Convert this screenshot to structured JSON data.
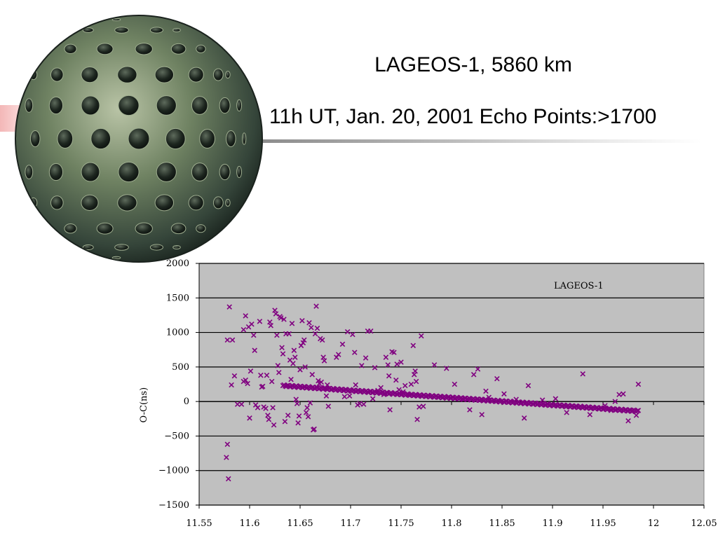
{
  "slide": {
    "title": "LAGEOS-1, 5860 km",
    "subtitle": "11h UT, Jan. 20, 2001 Echo Points:>1700",
    "accent_color": "#f3b7b7",
    "image_icon": "lageos-satellite-sphere"
  },
  "chart_data": {
    "type": "scatter",
    "title": "",
    "xlabel": "",
    "ylabel": "O-C(ns)",
    "xlim": [
      11.55,
      12.05
    ],
    "ylim": [
      -1500,
      2000
    ],
    "x_ticks": [
      "11.55",
      "11.6",
      "11.65",
      "11.7",
      "11.75",
      "11.8",
      "11.85",
      "11.9",
      "11.95",
      "12",
      "12.05"
    ],
    "y_ticks": [
      "2000",
      "1500",
      "1000",
      "500",
      "0",
      "-500",
      "-1000",
      "-1500"
    ],
    "grid": true,
    "legend_position": "top-right",
    "plot_background": "#c0c0c0",
    "marker_color": "#800080",
    "series": [
      {
        "name": "LAGEOS-1",
        "trend": {
          "x_start": 11.633,
          "y_start": 230,
          "x_end": 11.985,
          "y_end": -140,
          "count": 320
        },
        "points": [
          [
            11.58,
            1370
          ],
          [
            11.578,
            890
          ],
          [
            11.583,
            890
          ],
          [
            11.578,
            -620
          ],
          [
            11.577,
            -810
          ],
          [
            11.579,
            -1120
          ],
          [
            11.582,
            240
          ],
          [
            11.585,
            370
          ],
          [
            11.588,
            -40
          ],
          [
            11.592,
            -40
          ],
          [
            11.594,
            290
          ],
          [
            11.596,
            310
          ],
          [
            11.598,
            260
          ],
          [
            11.594,
            1040
          ],
          [
            11.596,
            1240
          ],
          [
            11.599,
            1080
          ],
          [
            11.6,
            -240
          ],
          [
            11.601,
            440
          ],
          [
            11.602,
            1120
          ],
          [
            11.604,
            960
          ],
          [
            11.605,
            740
          ],
          [
            11.606,
            -50
          ],
          [
            11.608,
            -90
          ],
          [
            11.61,
            1160
          ],
          [
            11.611,
            380
          ],
          [
            11.612,
            210
          ],
          [
            11.613,
            220
          ],
          [
            11.614,
            -80
          ],
          [
            11.616,
            -100
          ],
          [
            11.617,
            380
          ],
          [
            11.618,
            -200
          ],
          [
            11.619,
            -260
          ],
          [
            11.62,
            1150
          ],
          [
            11.621,
            1100
          ],
          [
            11.622,
            290
          ],
          [
            11.623,
            -90
          ],
          [
            11.624,
            -340
          ],
          [
            11.625,
            1320
          ],
          [
            11.626,
            1270
          ],
          [
            11.627,
            960
          ],
          [
            11.628,
            520
          ],
          [
            11.629,
            420
          ],
          [
            11.63,
            1230
          ],
          [
            11.631,
            1210
          ],
          [
            11.632,
            780
          ],
          [
            11.633,
            690
          ],
          [
            11.634,
            1190
          ],
          [
            11.635,
            -290
          ],
          [
            11.636,
            980
          ],
          [
            11.637,
            230
          ],
          [
            11.638,
            -200
          ],
          [
            11.639,
            980
          ],
          [
            11.64,
            600
          ],
          [
            11.641,
            320
          ],
          [
            11.642,
            1130
          ],
          [
            11.643,
            550
          ],
          [
            11.644,
            740
          ],
          [
            11.645,
            640
          ],
          [
            11.646,
            30
          ],
          [
            11.647,
            -30
          ],
          [
            11.648,
            -310
          ],
          [
            11.649,
            -210
          ],
          [
            11.65,
            460
          ],
          [
            11.651,
            810
          ],
          [
            11.652,
            1170
          ],
          [
            11.653,
            850
          ],
          [
            11.654,
            890
          ],
          [
            11.655,
            500
          ],
          [
            11.656,
            -160
          ],
          [
            11.657,
            -90
          ],
          [
            11.658,
            -220
          ],
          [
            11.659,
            1140
          ],
          [
            11.66,
            -20
          ],
          [
            11.661,
            1070
          ],
          [
            11.662,
            390
          ],
          [
            11.663,
            -410
          ],
          [
            11.664,
            -400
          ],
          [
            11.665,
            980
          ],
          [
            11.666,
            1380
          ],
          [
            11.667,
            1060
          ],
          [
            11.668,
            300
          ],
          [
            11.669,
            260
          ],
          [
            11.67,
            910
          ],
          [
            11.671,
            280
          ],
          [
            11.672,
            890
          ],
          [
            11.673,
            640
          ],
          [
            11.674,
            590
          ],
          [
            11.675,
            190
          ],
          [
            11.676,
            80
          ],
          [
            11.677,
            240
          ],
          [
            11.678,
            -70
          ],
          [
            11.686,
            640
          ],
          [
            11.688,
            680
          ],
          [
            11.692,
            830
          ],
          [
            11.694,
            70
          ],
          [
            11.697,
            1010
          ],
          [
            11.699,
            80
          ],
          [
            11.702,
            970
          ],
          [
            11.704,
            710
          ],
          [
            11.705,
            240
          ],
          [
            11.707,
            -50
          ],
          [
            11.709,
            -30
          ],
          [
            11.711,
            520
          ],
          [
            11.713,
            -40
          ],
          [
            11.715,
            630
          ],
          [
            11.717,
            1020
          ],
          [
            11.72,
            1020
          ],
          [
            11.722,
            40
          ],
          [
            11.724,
            490
          ],
          [
            11.727,
            160
          ],
          [
            11.73,
            200
          ],
          [
            11.733,
            100
          ],
          [
            11.735,
            640
          ],
          [
            11.737,
            530
          ],
          [
            11.738,
            370
          ],
          [
            11.739,
            -120
          ],
          [
            11.741,
            720
          ],
          [
            11.743,
            710
          ],
          [
            11.745,
            310
          ],
          [
            11.746,
            540
          ],
          [
            11.748,
            170
          ],
          [
            11.75,
            570
          ],
          [
            11.752,
            140
          ],
          [
            11.754,
            230
          ],
          [
            11.757,
            100
          ],
          [
            11.76,
            250
          ],
          [
            11.762,
            810
          ],
          [
            11.763,
            390
          ],
          [
            11.764,
            440
          ],
          [
            11.765,
            290
          ],
          [
            11.766,
            -260
          ],
          [
            11.768,
            -80
          ],
          [
            11.77,
            950
          ],
          [
            11.772,
            -70
          ],
          [
            11.783,
            530
          ],
          [
            11.795,
            480
          ],
          [
            11.803,
            250
          ],
          [
            11.812,
            30
          ],
          [
            11.818,
            -120
          ],
          [
            11.822,
            390
          ],
          [
            11.826,
            470
          ],
          [
            11.83,
            -190
          ],
          [
            11.834,
            150
          ],
          [
            11.837,
            60
          ],
          [
            11.845,
            330
          ],
          [
            11.852,
            110
          ],
          [
            11.864,
            30
          ],
          [
            11.872,
            -240
          ],
          [
            11.876,
            230
          ],
          [
            11.89,
            20
          ],
          [
            11.903,
            40
          ],
          [
            11.914,
            -160
          ],
          [
            11.93,
            400
          ],
          [
            11.937,
            -190
          ],
          [
            11.952,
            -60
          ],
          [
            11.958,
            -130
          ],
          [
            11.962,
            0
          ],
          [
            11.966,
            100
          ],
          [
            11.97,
            110
          ],
          [
            11.975,
            -280
          ],
          [
            11.979,
            -130
          ],
          [
            11.983,
            -200
          ],
          [
            11.985,
            250
          ]
        ]
      }
    ]
  }
}
